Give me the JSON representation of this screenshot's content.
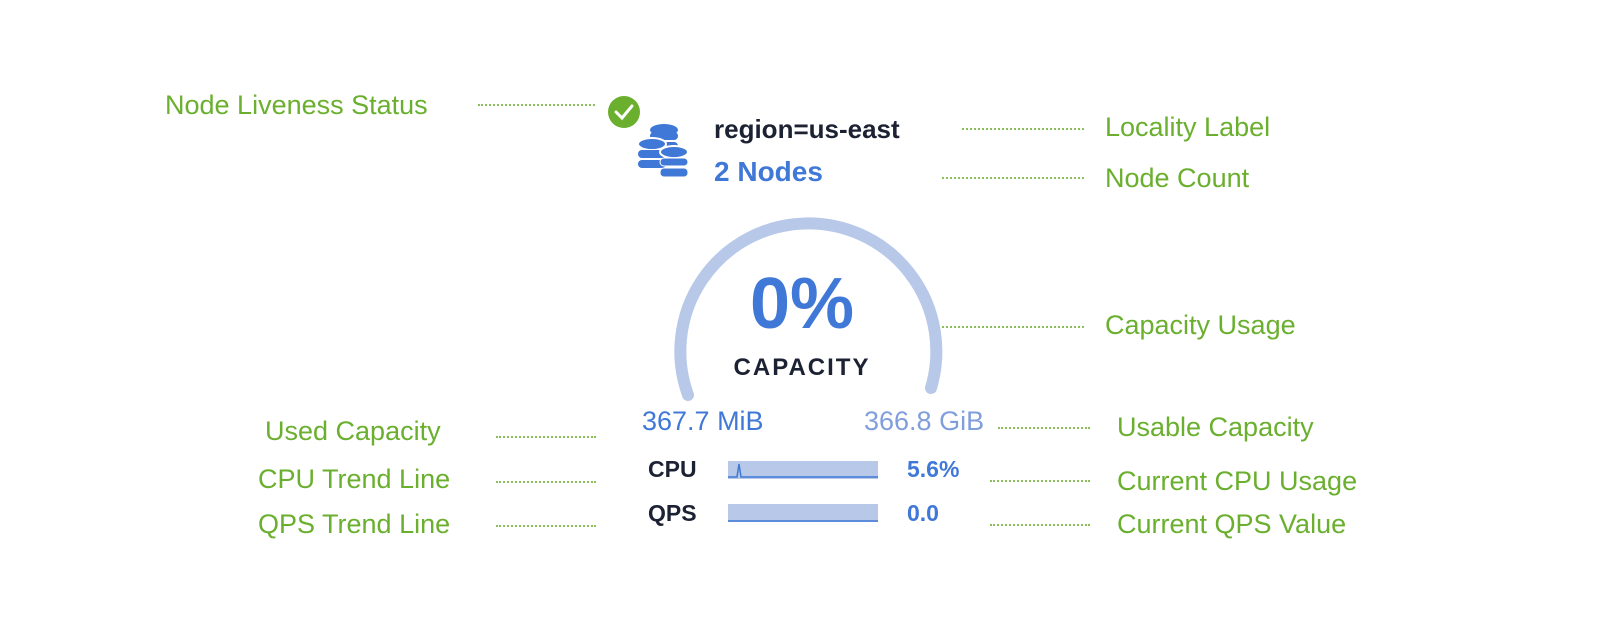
{
  "widget": {
    "locality": "region=us-east",
    "node_count": "2 Nodes",
    "capacity_percent": "0%",
    "capacity_label": "CAPACITY",
    "capacity_fraction": 0,
    "used_capacity": "367.7 MiB",
    "usable_capacity": "366.8 GiB",
    "cpu_label": "CPU",
    "cpu_value": "5.6%",
    "qps_label": "QPS",
    "qps_value": "0.0",
    "liveness_icon": "check-circle-icon",
    "node_icon": "database-icon",
    "colors": {
      "accent": "#3f78d6",
      "gauge": "#b7c8e8",
      "live": "#6aaf2e",
      "annotation": "#6aaf2e"
    }
  },
  "annotations": {
    "liveness": "Node Liveness Status",
    "locality": "Locality Label",
    "node_count": "Node Count",
    "capacity_usage": "Capacity Usage",
    "used_capacity": "Used Capacity",
    "usable_capacity": "Usable Capacity",
    "cpu_trend": "CPU Trend Line",
    "cpu_current": "Current CPU Usage",
    "qps_trend": "QPS Trend Line",
    "qps_current": "Current QPS Value"
  }
}
